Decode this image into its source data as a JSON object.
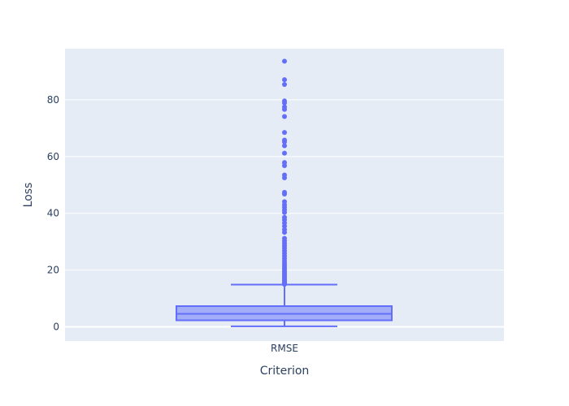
{
  "chart_data": {
    "type": "box",
    "xlabel": "Criterion",
    "ylabel": "Loss",
    "categories": [
      "RMSE"
    ],
    "ylim": [
      -5,
      98
    ],
    "yticks": [
      0,
      20,
      40,
      60,
      80
    ],
    "grid": true,
    "box": {
      "color": "#636efa",
      "lower_whisker": 0.2,
      "q1": 2.3,
      "median": 4.6,
      "q3": 7.3,
      "upper_whisker": 14.9,
      "outliers": [
        15,
        15.4,
        15.8,
        16.2,
        16.7,
        17.2,
        17.8,
        18.4,
        19.0,
        19.6,
        20.2,
        20.9,
        21.6,
        22.4,
        23.2,
        24.1,
        25.0,
        25.9,
        26.8,
        27.7,
        28.6,
        29.4,
        30.3,
        31.2,
        33.3,
        34.3,
        35.5,
        36.6,
        37.7,
        38.6,
        40.3,
        41.2,
        42.1,
        43.0,
        44.1,
        46.8,
        47.4,
        52.5,
        53.5,
        56.8,
        57.9,
        61.2,
        63.8,
        65.2,
        65.8,
        68.5,
        74.1,
        76.6,
        77.5,
        78.9,
        79.6,
        85.4,
        87.1,
        93.6
      ]
    }
  }
}
